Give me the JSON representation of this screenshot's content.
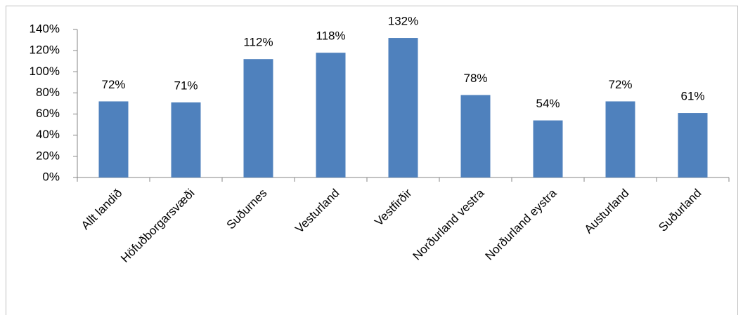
{
  "chart_data": {
    "type": "bar",
    "categories": [
      "Allt landið",
      "Höfuðborgarsvæði",
      "Suðurnes",
      "Vesturland",
      "Vestfirðir",
      "Norðurland vestra",
      "Norðurland eystra",
      "Austurland",
      "Suðurland"
    ],
    "values": [
      72,
      71,
      112,
      118,
      132,
      78,
      54,
      72,
      61
    ],
    "value_labels": [
      "72%",
      "71%",
      "112%",
      "118%",
      "132%",
      "78%",
      "54%",
      "72%",
      "61%"
    ],
    "color": "#4f81bd",
    "ylim": [
      0,
      140
    ],
    "yticks": [
      {
        "value": 0,
        "label": "0%"
      },
      {
        "value": 20,
        "label": "20%"
      },
      {
        "value": 40,
        "label": "40%"
      },
      {
        "value": 60,
        "label": "60%"
      },
      {
        "value": 80,
        "label": "80%"
      },
      {
        "value": 100,
        "label": "100%"
      },
      {
        "value": 120,
        "label": "120%"
      },
      {
        "value": 140,
        "label": "140%"
      }
    ],
    "grid": false
  }
}
